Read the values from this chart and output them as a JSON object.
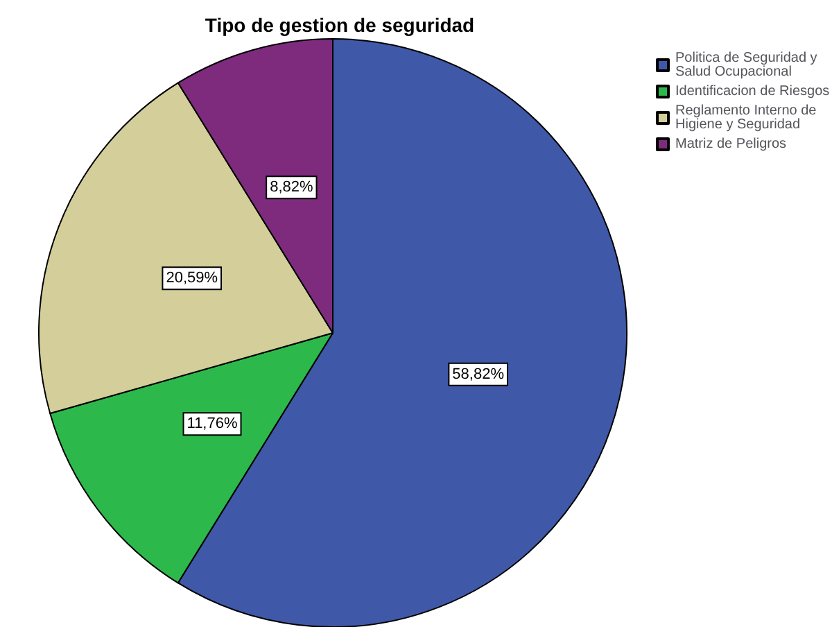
{
  "chart_data": {
    "type": "pie",
    "title": "Tipo de gestion de seguridad",
    "categories": [
      "Politica de Seguridad y Salud Ocupacional",
      "Identificacion de Riesgos",
      "Reglamento Interno de Higiene y Seguridad",
      "Matriz de Peligros"
    ],
    "values": [
      58.82,
      11.76,
      20.59,
      8.82
    ],
    "colors": [
      "#3f58a8",
      "#2db84b",
      "#d3ce9a",
      "#7e2b7e"
    ],
    "value_labels": [
      "58,82%",
      "11,76%",
      "20,59%",
      "8,82%"
    ],
    "legend": "top right"
  }
}
